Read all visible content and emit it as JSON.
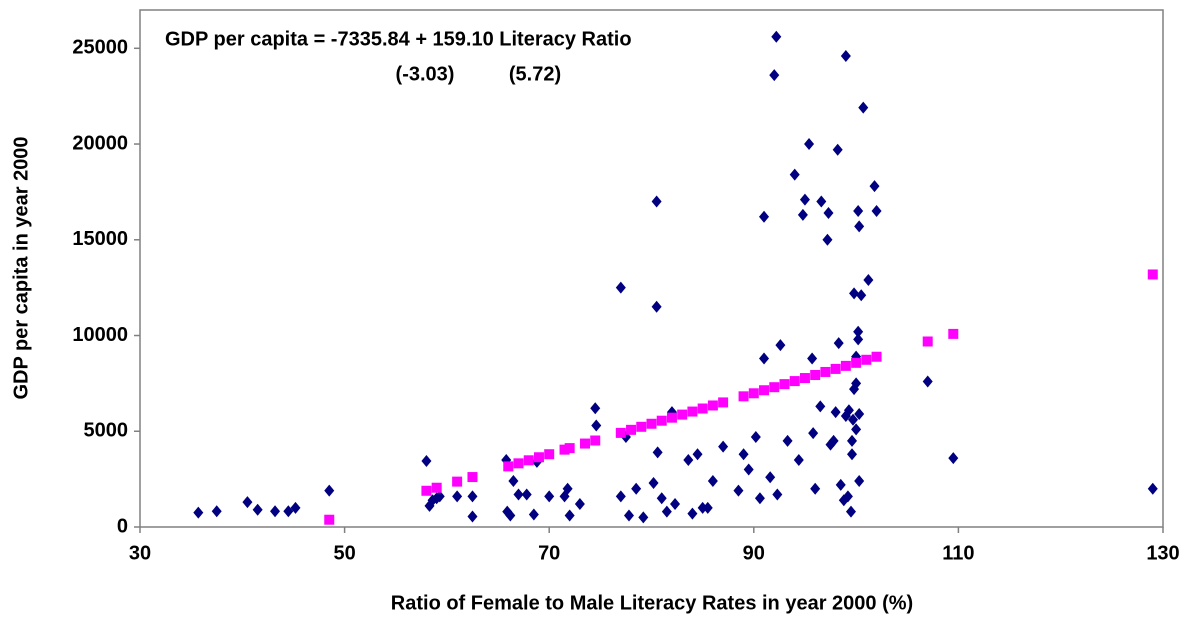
{
  "chart_data": {
    "type": "scatter",
    "xlabel": "Ratio of Female to Male Literacy Rates in year 2000 (%)",
    "ylabel": "GDP per capita in year 2000",
    "annotations": [
      "GDP per capita = -7335.84 + 159.10 Literacy Ratio",
      "(-3.03)",
      "(5.72)"
    ],
    "xlim": [
      30,
      130
    ],
    "xticks": [
      30,
      50,
      70,
      90,
      110,
      130
    ],
    "ylim": [
      0,
      27000
    ],
    "yticks": [
      0,
      5000,
      10000,
      15000,
      20000,
      25000
    ],
    "grid": false,
    "series": [
      {
        "color": "#000080",
        "marker": "diamond",
        "x": [
          35.7,
          37.5,
          40.5,
          41.5,
          43.2,
          44.5,
          45.2,
          48.5,
          58,
          58.3,
          58.6,
          59,
          59.3,
          61,
          62.5,
          62.5,
          65.8,
          65.9,
          66.2,
          66.5,
          67,
          67.8,
          68.5,
          68.8,
          70,
          71.5,
          71.8,
          72,
          73,
          74.5,
          74.6,
          77,
          77,
          77.5,
          77.8,
          78.5,
          79.2,
          80.2,
          80.5,
          80.5,
          80.6,
          81,
          81.5,
          82,
          82.3,
          83.6,
          84,
          84.5,
          85,
          85.5,
          86,
          87,
          88.5,
          89,
          89.5,
          90.2,
          90.6,
          91,
          91,
          91.6,
          92.2,
          92,
          92.3,
          92.6,
          93.3,
          94,
          94.4,
          94.8,
          95,
          95.4,
          95.7,
          95.8,
          96,
          96.5,
          96.6,
          97.2,
          97.3,
          97.5,
          97.8,
          98,
          98.2,
          98.3,
          98.5,
          98.8,
          99,
          99,
          99.2,
          99.3,
          99.5,
          99.6,
          99.6,
          99.7,
          99.8,
          99.8,
          100,
          100,
          100,
          100.2,
          100.2,
          100.2,
          100.3,
          100.3,
          100.3,
          100.5,
          100.7,
          101.2,
          101.8,
          102,
          107,
          109.5,
          129
        ],
        "values": [
          750,
          820,
          1300,
          900,
          820,
          820,
          1000,
          1900,
          3450,
          1100,
          1400,
          1500,
          1600,
          1600,
          1600,
          550,
          3500,
          800,
          600,
          2400,
          1700,
          1700,
          650,
          3400,
          1600,
          1600,
          2000,
          600,
          1200,
          6200,
          5300,
          12500,
          1600,
          4700,
          600,
          2000,
          500,
          2300,
          17000,
          11500,
          3900,
          1500,
          800,
          6000,
          1200,
          3500,
          700,
          3800,
          1000,
          1000,
          2400,
          4200,
          1900,
          3800,
          3000,
          4700,
          1500,
          16200,
          8800,
          2600,
          25600,
          23600,
          1700,
          9500,
          4500,
          18400,
          3500,
          16300,
          17100,
          20000,
          8800,
          4900,
          2000,
          6300,
          17000,
          15000,
          16400,
          4300,
          4500,
          6000,
          19700,
          9600,
          2200,
          1400,
          5800,
          24600,
          1600,
          6100,
          800,
          4500,
          3800,
          5600,
          7200,
          12200,
          5100,
          7500,
          8900,
          10200,
          9800,
          16500,
          15700,
          2400,
          5900,
          12100,
          21900,
          12900,
          17800,
          16500,
          7600,
          3600,
          2000
        ]
      },
      {
        "color": "#ff00ff",
        "marker": "square",
        "x": [
          48.5,
          58,
          59,
          61,
          62.5,
          66,
          67,
          68,
          69,
          70,
          71.5,
          72,
          73.5,
          74.5,
          77,
          78,
          79,
          80,
          81,
          82,
          83,
          84,
          85,
          86,
          87,
          89,
          90,
          91,
          92,
          93,
          94,
          95,
          96,
          97,
          98,
          99,
          100,
          101,
          102,
          107,
          109.5,
          129
        ],
        "values": [
          380,
          1892,
          2051,
          2370,
          2608,
          3165,
          3324,
          3483,
          3642,
          3801,
          4040,
          4120,
          4358,
          4517,
          4915,
          5074,
          5233,
          5392,
          5551,
          5710,
          5870,
          6029,
          6188,
          6347,
          6506,
          6824,
          6983,
          7142,
          7301,
          7461,
          7620,
          7779,
          7938,
          8097,
          8256,
          8415,
          8574,
          8733,
          8892,
          9688,
          10085,
          13188
        ]
      }
    ]
  }
}
